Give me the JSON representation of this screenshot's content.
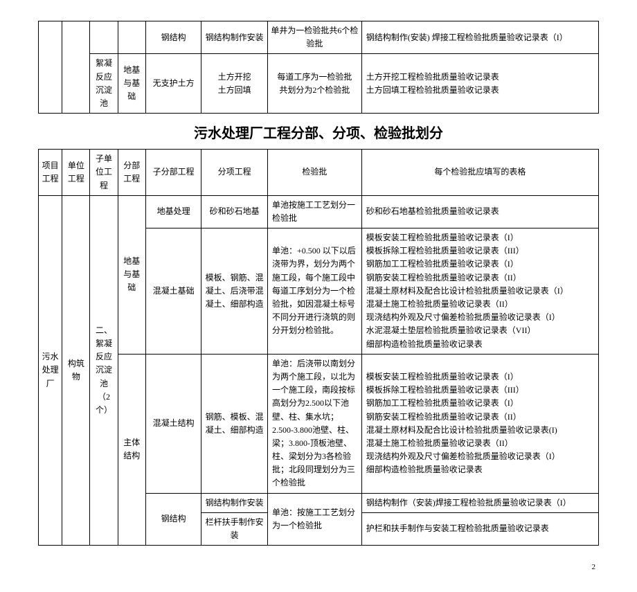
{
  "topTable": {
    "r1": {
      "c5": "钢结构",
      "c6": "钢结构制作安装",
      "c7": "单井为一检验批共6个检验批",
      "c8": "钢结构制作(安装) 焊接工程检验批质量验收记录表（I）"
    },
    "r2": {
      "c3": "絮凝反应沉淀池",
      "c4": "地基与基础",
      "c5": "无支护土方",
      "c6": "土方开挖\n土方回填",
      "c7": "每道工序为一检验批\n共划分为2个检验批",
      "c8": "土方开挖工程检验批质量验收记录表\n土方回填工程检验批质量验收记录表"
    }
  },
  "title": "污水处理厂工程分部、分项、检验批划分",
  "header": {
    "c1": "项目工程",
    "c2": "单位工程",
    "c3": "子单位工程",
    "c4": "分部工程",
    "c5": "子分部工程",
    "c6": "分项工程",
    "c7": "检验批",
    "c8": "每个检验批应填写的表格"
  },
  "body": {
    "c1": "污水处理厂",
    "c2": "构筑物",
    "c3": "二、\n絮凝反应沉淀池\n（2个）",
    "r1": {
      "c4": "地基与基础",
      "c5": "地基处理",
      "c6": "砂和砂石地基",
      "c7": "单池按施工工艺划分一检验批",
      "c8": "砂和砂石地基检验批质量验收记录表"
    },
    "r2": {
      "c5": "混凝土基础",
      "c6": "模板、钢筋、混凝土、后浇带混凝土、细部构造",
      "c7": "单池：+0.500 以下以后浇带为界，划分为两个施工段，每个施工段中每道工序划分为一个检验批，如因混凝土标号不同分开进行浇筑的则分开划分检验批。",
      "c8": "模板安装工程检验批质量验收记录表（I）\n模板拆除工程检验批质量验收记录表（III）\n钢筋加工工程检验批质量验收记录表（I）\n钢筋安装工程检验批质量验收记录表（II）\n混凝土原材料及配合比设计检验批质量验收记录表（I）\n混凝土施工检验批质量验收记录表（II）\n现浇结构外观及尺寸偏差检验批质量验收记录表（I）\n水泥混凝土垫层检验批质量验收记录表（VII）\n细部构造检验批质量验收记录表"
    },
    "r3": {
      "c4": "主体结构",
      "c5": "混凝土结构",
      "c6": "钢筋、模板、混凝土、细部构造",
      "c7": "单池：后浇带以南划分为两个施工段，以北为一个施工段，南段按标高划分为2.500以下池壁、柱、集水坑；2.500-3.800池壁、柱、梁；3.800-顶板池壁、柱、梁划分为3各检验批；北段同理划分为三个检验批",
      "c8": "模板安装工程检验批质量验收记录表（I）\n模板拆除工程检验批质量验收记录表（III）\n钢筋加工工程检验批质量验收记录表（I）\n钢筋安装工程检验批质量验收记录表（II）\n混凝土原材料及配合比设计检验批质量验收记录表(I)\n混凝土施工检验批质量验收记录表（II）\n现浇结构外观及尺寸偏差检验批质量验收记录表（I）\n细部构造检验批质量验收记录表"
    },
    "r4": {
      "c5": "钢结构",
      "c6a": "钢结构制作安装",
      "c6b": "栏杆扶手制作安装",
      "c7": "单池：按施工工艺划分为一个检验批",
      "c8a": "钢结构制作（安装)焊接工程检验批质量验收记录表（I）",
      "c8b": "护栏和扶手制作与安装工程检验批质量验收记录表"
    }
  },
  "pageNum": "2"
}
